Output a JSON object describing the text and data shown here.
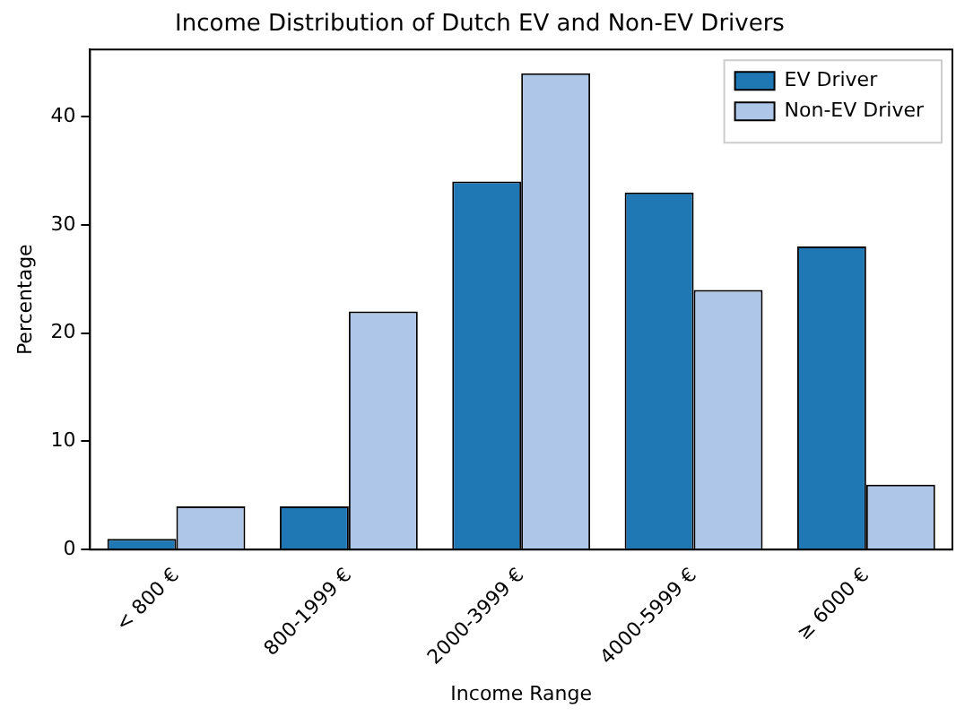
{
  "chart_data": {
    "type": "bar",
    "title": "Income Distribution of Dutch EV and Non-EV Drivers",
    "xlabel": "Income Range",
    "ylabel": "Percentage",
    "categories": [
      "< 800 €",
      "800-1999 €",
      "2000-3999 €",
      "4000-5999 €",
      "≥ 6000 €"
    ],
    "series": [
      {
        "name": "EV Driver",
        "color": "#1f77b4",
        "values": [
          1,
          4,
          34,
          33,
          28
        ]
      },
      {
        "name": "Non-EV Driver",
        "color": "#aec7e8",
        "values": [
          4,
          22,
          44,
          24,
          6
        ]
      }
    ],
    "ylim": [
      0,
      46.2
    ],
    "yticks": [
      0,
      10,
      20,
      30,
      40
    ],
    "grid": false,
    "legend": "top right"
  }
}
